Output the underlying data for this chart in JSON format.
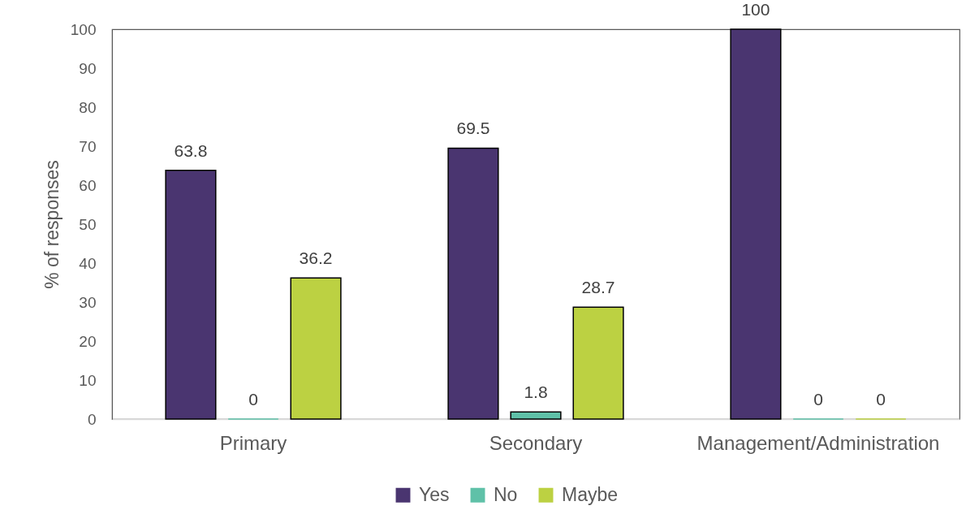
{
  "chart_data": {
    "type": "bar",
    "ylabel": "% of responses",
    "categories": [
      "Primary",
      "Secondary",
      "Management/Administration"
    ],
    "series": [
      {
        "name": "Yes",
        "color": "#4a3570",
        "values": [
          63.8,
          69.5,
          100
        ]
      },
      {
        "name": "No",
        "color": "#5fc1a8",
        "values": [
          0,
          1.8,
          0
        ]
      },
      {
        "name": "Maybe",
        "color": "#bcd142",
        "values": [
          36.2,
          28.7,
          0
        ]
      }
    ],
    "ylim": [
      0,
      100
    ],
    "yticks": [
      0,
      10,
      20,
      30,
      40,
      50,
      60,
      70,
      80,
      90,
      100
    ],
    "data_labels": true,
    "legend": "bottom"
  }
}
